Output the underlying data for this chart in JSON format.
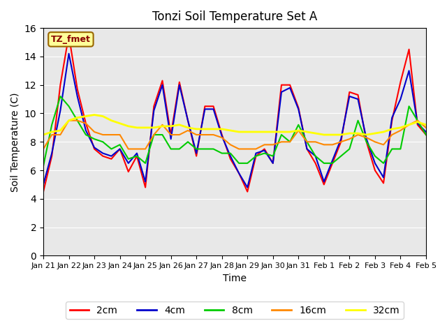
{
  "title": "Tonzi Soil Temperature Set A",
  "xlabel": "Time",
  "ylabel": "Soil Temperature (C)",
  "ylim": [
    0,
    16
  ],
  "yticks": [
    0,
    2,
    4,
    6,
    8,
    10,
    12,
    14,
    16
  ],
  "colors": {
    "2cm": "#ff0000",
    "4cm": "#0000cc",
    "8cm": "#00cc00",
    "16cm": "#ff8800",
    "32cm": "#ffff00"
  },
  "label_box": "TZ_fmet",
  "label_box_bg": "#ffff99",
  "label_box_text": "#880000",
  "bg_color": "#e8e8e8",
  "xtick_labels": [
    "Jan 21",
    "Jan 22",
    "Jan 23",
    "Jan 24",
    "Jan 25",
    "Jan 26",
    "Jan 27",
    "Jan 28",
    "Jan 29",
    "Jan 30",
    "Jan 31",
    "Feb 1",
    "Feb 2",
    "Feb 3",
    "Feb 4",
    "Feb 5"
  ],
  "x_values": [
    0,
    1,
    2,
    3,
    4,
    5,
    6,
    7,
    8,
    9,
    10,
    11,
    12,
    13,
    14,
    15
  ],
  "data_2cm": [
    4.5,
    7.0,
    12.0,
    15.5,
    11.7,
    9.3,
    7.5,
    7.0,
    6.8,
    7.5,
    5.9,
    7.0,
    4.8,
    10.5,
    12.3,
    8.5,
    12.2,
    9.5,
    7.0,
    10.5,
    10.5,
    8.5,
    6.8,
    5.8,
    4.5,
    7.0,
    7.5,
    6.5,
    12.0,
    12.0,
    10.4,
    7.5,
    6.5,
    5.0,
    6.5,
    8.0,
    11.5,
    11.3,
    8.0,
    6.0,
    5.1,
    9.5,
    12.2,
    14.5,
    9.2,
    8.5
  ],
  "data_4cm": [
    5.0,
    7.2,
    10.2,
    14.2,
    11.2,
    8.8,
    7.6,
    7.2,
    7.0,
    7.5,
    6.5,
    7.2,
    5.2,
    10.2,
    12.0,
    8.2,
    12.0,
    9.5,
    7.2,
    10.3,
    10.3,
    8.4,
    7.0,
    5.8,
    4.8,
    7.2,
    7.4,
    6.5,
    11.5,
    11.8,
    10.3,
    7.5,
    7.0,
    5.2,
    6.7,
    8.2,
    11.2,
    11.0,
    8.2,
    6.5,
    5.5,
    9.7,
    11.0,
    13.0,
    9.3,
    8.7
  ],
  "data_8cm": [
    6.3,
    9.2,
    11.2,
    10.5,
    9.5,
    8.5,
    8.2,
    8.0,
    7.5,
    7.8,
    6.8,
    7.0,
    6.5,
    8.5,
    8.5,
    7.5,
    7.5,
    8.0,
    7.5,
    7.5,
    7.5,
    7.2,
    7.2,
    6.5,
    6.5,
    7.0,
    7.2,
    7.0,
    8.5,
    8.0,
    9.2,
    8.0,
    7.0,
    6.5,
    6.5,
    7.0,
    7.5,
    9.5,
    8.0,
    7.0,
    6.5,
    7.5,
    7.5,
    10.5,
    9.5,
    8.5
  ],
  "data_16cm": [
    7.5,
    8.5,
    8.5,
    9.5,
    9.5,
    9.3,
    8.7,
    8.5,
    8.5,
    8.5,
    7.5,
    7.5,
    7.5,
    8.5,
    9.2,
    8.5,
    8.5,
    8.8,
    8.5,
    8.5,
    8.5,
    8.3,
    7.8,
    7.5,
    7.5,
    7.5,
    7.8,
    7.8,
    8.0,
    8.0,
    8.8,
    8.0,
    8.0,
    7.8,
    7.8,
    8.0,
    8.2,
    8.5,
    8.3,
    8.0,
    7.8,
    8.5,
    8.8,
    9.2,
    9.5,
    9.0
  ],
  "data_32cm": [
    8.5,
    8.7,
    8.8,
    9.5,
    9.7,
    9.8,
    9.9,
    9.8,
    9.5,
    9.3,
    9.1,
    9.0,
    9.0,
    9.0,
    9.1,
    9.1,
    9.2,
    9.0,
    8.9,
    8.9,
    8.9,
    8.9,
    8.8,
    8.7,
    8.7,
    8.7,
    8.7,
    8.7,
    8.7,
    8.7,
    8.8,
    8.7,
    8.6,
    8.5,
    8.5,
    8.5,
    8.6,
    8.6,
    8.5,
    8.6,
    8.7,
    8.9,
    9.0,
    9.2,
    9.4,
    9.2
  ]
}
